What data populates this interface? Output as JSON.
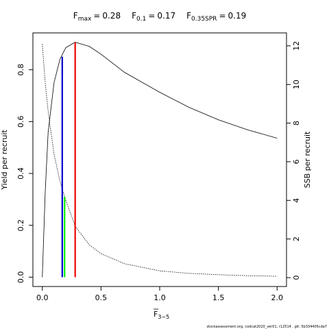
{
  "chart_data": {
    "type": "line",
    "title": [
      {
        "symbol": "F",
        "subscript": "max",
        "sep": "=",
        "value": 0.28
      },
      {
        "symbol": "F",
        "subscript": "0.1",
        "sep": "=",
        "value": 0.17
      },
      {
        "symbol": "F",
        "subscript": "0.35SPR",
        "sep": "=",
        "value": 0.19
      }
    ],
    "xlabel": {
      "symbol": "F",
      "subscript": "3−5"
    },
    "ylabel": "Yield per recruit",
    "y2label": "SSB per recruit",
    "footnote": "stockassessment.org, codcat2020_ver01, r12514 , git: 5b334405cda7",
    "x": [
      0,
      0.025,
      0.05,
      0.1,
      0.15,
      0.2,
      0.28,
      0.4,
      0.5,
      0.7,
      1.0,
      1.25,
      1.5,
      1.75,
      2.0
    ],
    "series": [
      {
        "name": "Yield per recruit",
        "color": "#000000",
        "axis": "y",
        "dash": "solid",
        "values": [
          0,
          0.33,
          0.56,
          0.75,
          0.84,
          0.885,
          0.906,
          0.89,
          0.86,
          0.79,
          0.713,
          0.655,
          0.607,
          0.568,
          0.536
        ]
      },
      {
        "name": "SSB per recruit",
        "color": "#000000",
        "axis": "y2",
        "dash": "dotted",
        "values": [
          12.1,
          10.1,
          8.6,
          6.4,
          5.0,
          4.0,
          2.66,
          1.7,
          1.24,
          0.72,
          0.35,
          0.22,
          0.15,
          0.1,
          0.07
        ]
      }
    ],
    "ref_lines": [
      {
        "x": 0.17,
        "y": 0.85,
        "color": "#0000cc"
      },
      {
        "x": 0.19,
        "y": 0.31,
        "color": "#00ee00"
      },
      {
        "x": 0.28,
        "y": 0.906,
        "color": "#ee0000"
      }
    ],
    "xlim": [
      -0.08,
      2.08
    ],
    "xticks": [
      {
        "value": 0,
        "label": "0.0"
      },
      0.5,
      {
        "value": 1,
        "label": "1.0"
      },
      1.5,
      {
        "value": 2,
        "label": "2.0"
      }
    ],
    "ylim": [
      -0.036,
      0.942
    ],
    "yticks": [
      {
        "value": 0,
        "label": "0.0"
      },
      0.2,
      0.4,
      0.6,
      0.8
    ],
    "y2lim": [
      -0.46,
      12.67
    ],
    "y2ticks": [
      0,
      2,
      4,
      6,
      8,
      10,
      12
    ]
  }
}
